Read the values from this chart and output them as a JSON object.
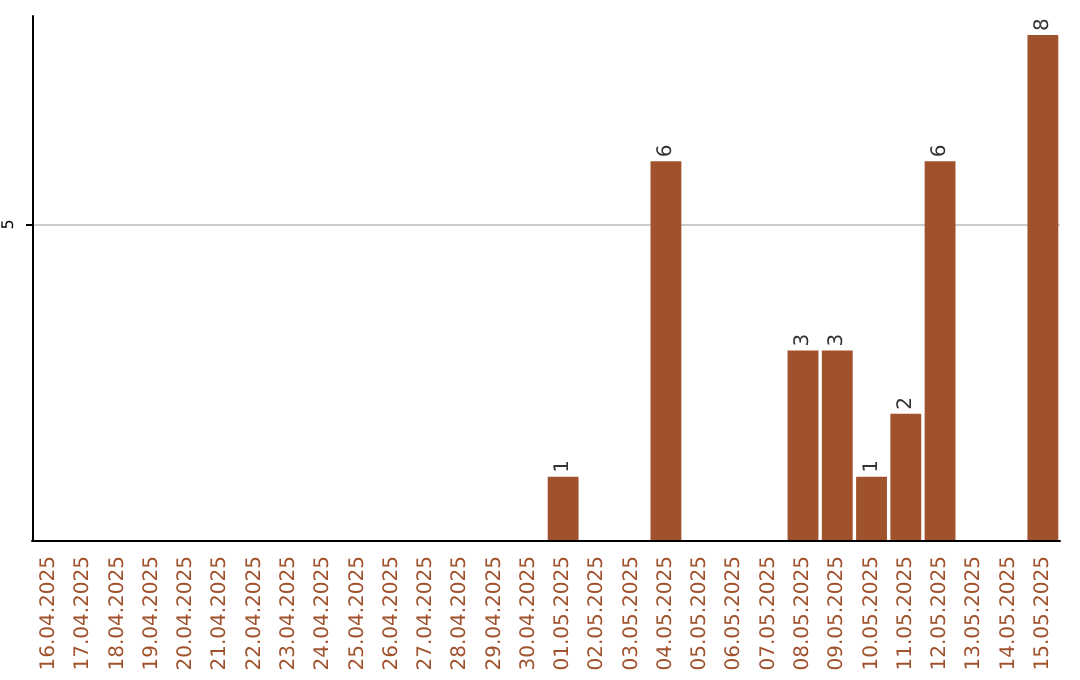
{
  "chart_data": {
    "type": "bar",
    "categories": [
      "16.04.2025",
      "17.04.2025",
      "18.04.2025",
      "19.04.2025",
      "20.04.2025",
      "21.04.2025",
      "22.04.2025",
      "23.04.2025",
      "24.04.2025",
      "25.04.2025",
      "26.04.2025",
      "27.04.2025",
      "28.04.2025",
      "29.04.2025",
      "30.04.2025",
      "01.05.2025",
      "02.05.2025",
      "03.05.2025",
      "04.05.2025",
      "05.05.2025",
      "06.05.2025",
      "07.05.2025",
      "08.05.2025",
      "09.05.2025",
      "10.05.2025",
      "11.05.2025",
      "12.05.2025",
      "13.05.2025",
      "14.05.2025",
      "15.05.2025"
    ],
    "values": [
      null,
      null,
      null,
      null,
      null,
      null,
      null,
      null,
      null,
      null,
      null,
      null,
      null,
      null,
      null,
      1,
      null,
      null,
      6,
      null,
      null,
      null,
      3,
      3,
      1,
      2,
      6,
      null,
      null,
      8
    ],
    "color": "#a0522d",
    "ylim": [
      0,
      8.3
    ],
    "yticks": [
      5
    ],
    "grid": "y",
    "data_labels": true
  }
}
